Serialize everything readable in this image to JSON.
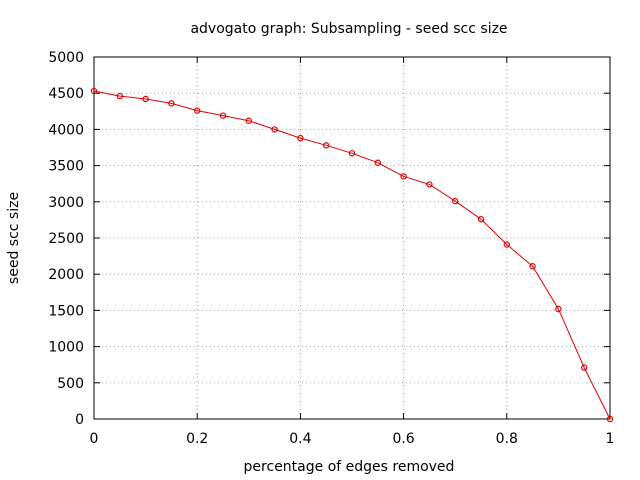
{
  "colors": {
    "series": "#e00000",
    "frame": "#000000",
    "grid": "#a0a0a0",
    "background": "#ffffff"
  },
  "chart_data": {
    "type": "line",
    "title": "advogato graph: Subsampling - seed scc size",
    "xlabel": "percentage of edges removed",
    "ylabel": "seed scc size",
    "xlim": [
      0,
      1
    ],
    "ylim": [
      0,
      5000
    ],
    "xticks": [
      0,
      0.2,
      0.4,
      0.6,
      0.8,
      1
    ],
    "xtick_labels": [
      "0",
      "0.2",
      "0.4",
      "0.6",
      "0.8",
      "1"
    ],
    "yticks": [
      0,
      500,
      1000,
      1500,
      2000,
      2500,
      3000,
      3500,
      4000,
      4500,
      5000
    ],
    "ytick_labels": [
      "0",
      "500",
      "1000",
      "1500",
      "2000",
      "2500",
      "3000",
      "3500",
      "4000",
      "4500",
      "5000"
    ],
    "grid": true,
    "legend": "none",
    "marker": "circle",
    "x": [
      0,
      0.05,
      0.1,
      0.15,
      0.2,
      0.25,
      0.3,
      0.35,
      0.4,
      0.45,
      0.5,
      0.55,
      0.6,
      0.65,
      0.7,
      0.75,
      0.8,
      0.85,
      0.9,
      0.95,
      1
    ],
    "series": [
      {
        "values": [
          4530,
          4460,
          4420,
          4360,
          4260,
          4190,
          4120,
          4000,
          3880,
          3780,
          3670,
          3540,
          3350,
          3240,
          3010,
          2760,
          2410,
          2110,
          1520,
          710,
          0
        ]
      }
    ]
  }
}
